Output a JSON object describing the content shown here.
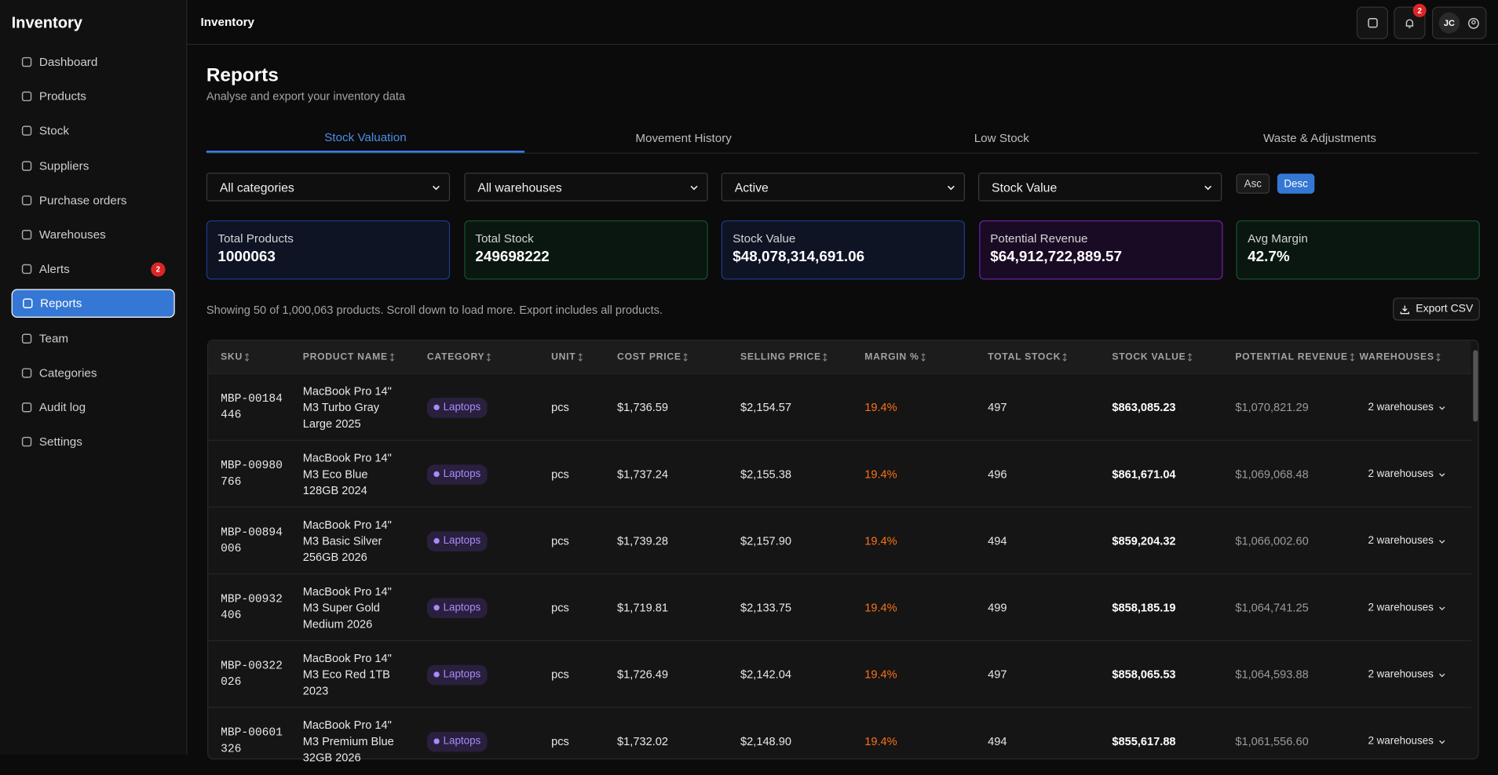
{
  "sidebar": {
    "brand": "Inventory",
    "nav": [
      {
        "label": "Dashboard"
      },
      {
        "label": "Products"
      },
      {
        "label": "Stock"
      },
      {
        "label": "Suppliers"
      },
      {
        "label": "Purchase orders"
      },
      {
        "label": "Warehouses"
      },
      {
        "label": "Alerts",
        "badge": "2"
      },
      {
        "label": "Reports",
        "active": true
      },
      {
        "label": "Team"
      },
      {
        "label": "Categories"
      },
      {
        "label": "Audit log"
      },
      {
        "label": "Settings"
      }
    ]
  },
  "header": {
    "title": "Inventory",
    "notifications": "2",
    "avatar": "JC"
  },
  "page": {
    "title": "Reports",
    "subtitle": "Analyse and export your inventory data"
  },
  "tabs": [
    {
      "label": "Stock Valuation",
      "active": true
    },
    {
      "label": "Movement History"
    },
    {
      "label": "Low Stock"
    },
    {
      "label": "Waste & Adjustments"
    }
  ],
  "filters": [
    "All categories",
    "All warehouses",
    "Active",
    "Stock Value"
  ],
  "sort": [
    {
      "label": "Asc"
    },
    {
      "label": "Desc",
      "active": true
    }
  ],
  "stats": [
    {
      "label": "Total Products",
      "value": "1000063",
      "tone": "blue"
    },
    {
      "label": "Total Stock",
      "value": "249698222",
      "tone": "green"
    },
    {
      "label": "Stock Value",
      "value": "$48,078,314,691.06",
      "tone": "blue"
    },
    {
      "label": "Potential Revenue",
      "value": "$64,912,722,889.57",
      "tone": "purple"
    },
    {
      "label": "Avg Margin",
      "value": "42.7%",
      "tone": "green"
    }
  ],
  "summary": "Showing 50 of 1,000,063 products. Scroll down to load more. Export includes all products.",
  "export": "Export CSV",
  "table": {
    "columns": [
      "SKU",
      "PRODUCT NAME",
      "CATEGORY",
      "UNIT",
      "COST PRICE",
      "SELLING PRICE",
      "MARGIN %",
      "TOTAL STOCK",
      "STOCK VALUE",
      "POTENTIAL REVENUE",
      "WAREHOUSES"
    ],
    "rows": [
      [
        "MBP-00184446",
        "MacBook Pro 14\" M3 Turbo Gray Large 2025",
        "Laptops",
        "pcs",
        "$1,736.59",
        "$2,154.57",
        "19.4%",
        "497",
        "$863,085.23",
        "$1,070,821.29",
        "2 warehouses"
      ],
      [
        "MBP-00980766",
        "MacBook Pro 14\" M3 Eco Blue 128GB 2024",
        "Laptops",
        "pcs",
        "$1,737.24",
        "$2,155.38",
        "19.4%",
        "496",
        "$861,671.04",
        "$1,069,068.48",
        "2 warehouses"
      ],
      [
        "MBP-00894006",
        "MacBook Pro 14\" M3 Basic Silver 256GB 2026",
        "Laptops",
        "pcs",
        "$1,739.28",
        "$2,157.90",
        "19.4%",
        "494",
        "$859,204.32",
        "$1,066,002.60",
        "2 warehouses"
      ],
      [
        "MBP-00932406",
        "MacBook Pro 14\" M3 Super Gold Medium 2026",
        "Laptops",
        "pcs",
        "$1,719.81",
        "$2,133.75",
        "19.4%",
        "499",
        "$858,185.19",
        "$1,064,741.25",
        "2 warehouses"
      ],
      [
        "MBP-00322026",
        "MacBook Pro 14\" M3 Eco Red 1TB 2023",
        "Laptops",
        "pcs",
        "$1,726.49",
        "$2,142.04",
        "19.4%",
        "497",
        "$858,065.53",
        "$1,064,593.88",
        "2 warehouses"
      ],
      [
        "MBP-00601326",
        "MacBook Pro 14\" M3 Premium Blue 32GB 2026",
        "Laptops",
        "pcs",
        "$1,732.02",
        "$2,148.90",
        "19.4%",
        "494",
        "$855,617.88",
        "$1,061,556.60",
        "2 warehouses"
      ]
    ]
  }
}
